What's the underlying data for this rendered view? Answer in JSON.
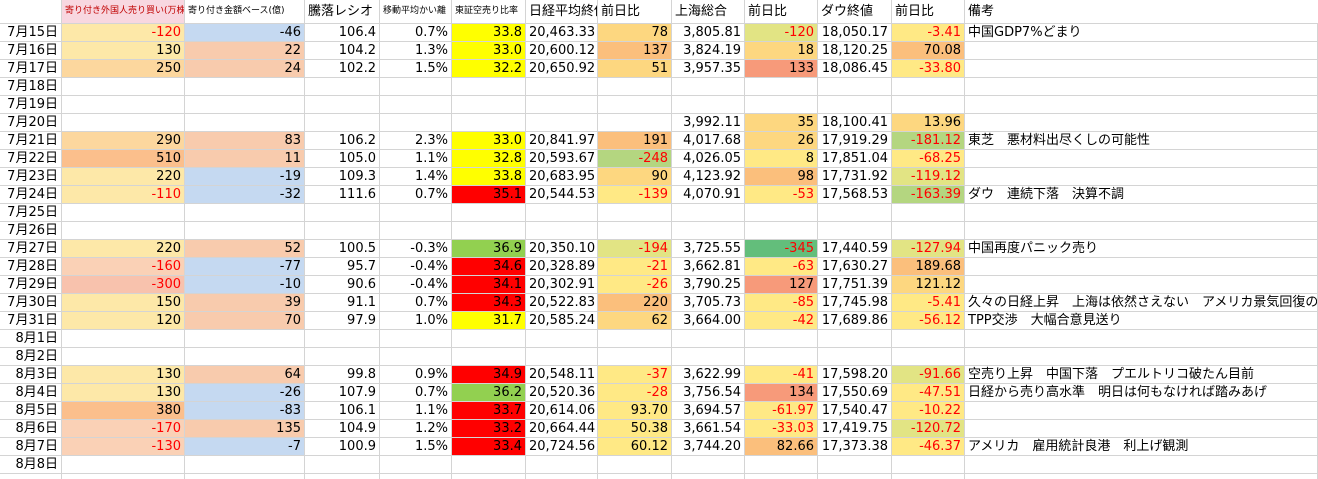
{
  "columns": [
    "寄り付き外国人売り買い(万株)",
    "寄り付き金額ベース(億)",
    "騰落レシオ",
    "移動平均かい離",
    "東証空売り比率",
    "日経平均終値",
    "前日比",
    "上海総合",
    "前日比",
    "ダウ終値",
    "前日比",
    "備考"
  ],
  "rows": [
    [
      "7月15日",
      "-120",
      "-46",
      "106.4",
      "0.7%",
      "33.8",
      "20,463.33",
      "78",
      "3,805.81",
      "-120",
      "18,050.17",
      "-3.41",
      "中国GDP7%どまり"
    ],
    [
      "7月16日",
      "130",
      "22",
      "104.2",
      "1.3%",
      "33.0",
      "20,600.12",
      "137",
      "3,824.19",
      "18",
      "18,120.25",
      "70.08",
      null
    ],
    [
      "7月17日",
      "250",
      "24",
      "102.2",
      "1.5%",
      "32.2",
      "20,650.92",
      "51",
      "3,957.35",
      "133",
      "18,086.45",
      "-33.80",
      null
    ],
    [
      "7月18日",
      null,
      null,
      null,
      null,
      null,
      null,
      null,
      null,
      null,
      null,
      null,
      null
    ],
    [
      "7月19日",
      null,
      null,
      null,
      null,
      null,
      null,
      null,
      null,
      null,
      null,
      null,
      null
    ],
    [
      "7月20日",
      null,
      null,
      null,
      null,
      null,
      null,
      null,
      "3,992.11",
      "35",
      "18,100.41",
      "13.96",
      null
    ],
    [
      "7月21日",
      "290",
      "83",
      "106.2",
      "2.3%",
      "33.0",
      "20,841.97",
      "191",
      "4,017.68",
      "26",
      "17,919.29",
      "-181.12",
      "東芝　悪材料出尽くしの可能性"
    ],
    [
      "7月22日",
      "510",
      "11",
      "105.0",
      "1.1%",
      "32.8",
      "20,593.67",
      "-248",
      "4,026.05",
      "8",
      "17,851.04",
      "-68.25",
      null
    ],
    [
      "7月23日",
      "220",
      "-19",
      "109.3",
      "1.4%",
      "33.8",
      "20,683.95",
      "90",
      "4,123.92",
      "98",
      "17,731.92",
      "-119.12",
      null
    ],
    [
      "7月24日",
      "-110",
      "-32",
      "111.6",
      "0.7%",
      "35.1",
      "20,544.53",
      "-139",
      "4,070.91",
      "-53",
      "17,568.53",
      "-163.39",
      "ダウ　連続下落　決算不調"
    ],
    [
      "7月25日",
      null,
      null,
      null,
      null,
      null,
      null,
      null,
      null,
      null,
      null,
      null,
      null
    ],
    [
      "7月26日",
      null,
      null,
      null,
      null,
      null,
      null,
      null,
      null,
      null,
      null,
      null,
      null
    ],
    [
      "7月27日",
      "220",
      "52",
      "100.5",
      "-0.3%",
      "36.9",
      "20,350.10",
      "-194",
      "3,725.55",
      "-345",
      "17,440.59",
      "-127.94",
      "中国再度パニック売り"
    ],
    [
      "7月28日",
      "-160",
      "-77",
      "95.7",
      "-0.4%",
      "34.6",
      "20,328.89",
      "-21",
      "3,662.81",
      "-63",
      "17,630.27",
      "189.68",
      null
    ],
    [
      "7月29日",
      "-300",
      "-10",
      "90.6",
      "-0.4%",
      "34.1",
      "20,302.91",
      "-26",
      "3,790.25",
      "127",
      "17,751.39",
      "121.12",
      null
    ],
    [
      "7月30日",
      "150",
      "39",
      "91.1",
      "0.7%",
      "34.3",
      "20,522.83",
      "220",
      "3,705.73",
      "-85",
      "17,745.98",
      "-5.41",
      "久々の日経上昇　上海は依然さえない　アメリカ景気回復の"
    ],
    [
      "7月31日",
      "120",
      "70",
      "97.9",
      "1.0%",
      "31.7",
      "20,585.24",
      "62",
      "3,664.00",
      "-42",
      "17,689.86",
      "-56.12",
      "TPP交渉　大幅合意見送り"
    ],
    [
      "8月1日",
      null,
      null,
      null,
      null,
      null,
      null,
      null,
      null,
      null,
      null,
      null,
      null
    ],
    [
      "8月2日",
      null,
      null,
      null,
      null,
      null,
      null,
      null,
      null,
      null,
      null,
      null,
      null
    ],
    [
      "8月3日",
      "130",
      "64",
      "99.8",
      "0.9%",
      "34.9",
      "20,548.11",
      "-37",
      "3,622.99",
      "-41",
      "17,598.20",
      "-91.66",
      "空売り上昇　中国下落　プエルトリコ破たん目前"
    ],
    [
      "8月4日",
      "130",
      "-26",
      "107.9",
      "0.7%",
      "36.2",
      "20,520.36",
      "-28",
      "3,756.54",
      "134",
      "17,550.69",
      "-47.51",
      "日経から売り高水準　明日は何もなければ踏みあげ"
    ],
    [
      "8月5日",
      "380",
      "-83",
      "106.1",
      "1.1%",
      "33.7",
      "20,614.06",
      "93.70",
      "3,694.57",
      "-61.97",
      "17,540.47",
      "-10.22",
      null
    ],
    [
      "8月6日",
      "-170",
      "135",
      "104.9",
      "1.2%",
      "33.2",
      "20,664.44",
      "50.38",
      "3,661.54",
      "-33.03",
      "17,419.75",
      "-120.72",
      null
    ],
    [
      "8月7日",
      "-130",
      "-7",
      "100.9",
      "1.5%",
      "33.4",
      "20,724.56",
      "60.12",
      "3,744.20",
      "82.66",
      "17,373.38",
      "-46.37",
      "アメリカ　雇用統計良港　利上げ観測"
    ],
    [
      "8月8日",
      null,
      null,
      null,
      null,
      null,
      null,
      null,
      null,
      null,
      null,
      null,
      null
    ]
  ]
}
